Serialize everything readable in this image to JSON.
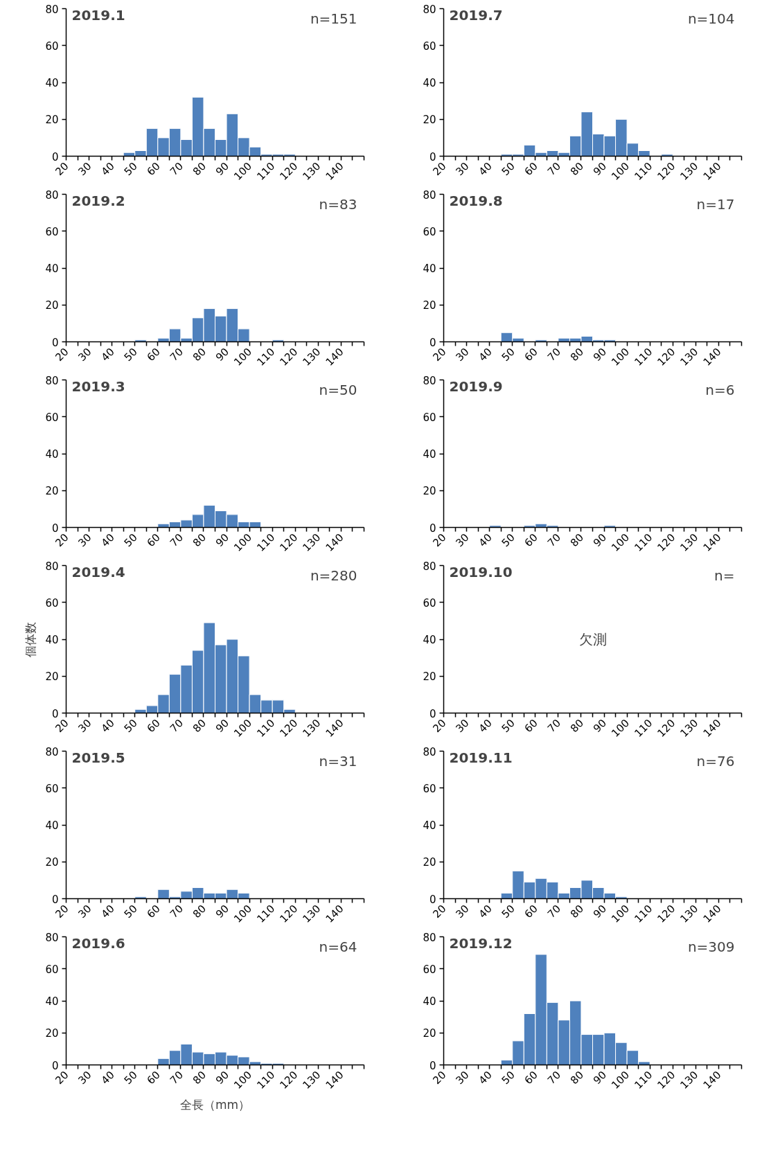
{
  "chart_data": [
    {
      "type": "histogram",
      "title": "2019.1",
      "annotations": [
        "n=151"
      ],
      "color": "#4f81bd",
      "bins": [
        20,
        25,
        30,
        35,
        40,
        45,
        50,
        55,
        60,
        65,
        70,
        75,
        80,
        85,
        90,
        95,
        100,
        105,
        110,
        115,
        120,
        125,
        130,
        135,
        140,
        145,
        150
      ],
      "values": [
        0,
        0,
        0,
        0,
        0,
        2,
        3,
        15,
        10,
        15,
        9,
        32,
        15,
        9,
        23,
        10,
        5,
        1,
        1,
        1,
        0,
        0,
        0,
        0,
        0,
        0
      ],
      "xlim": [
        20,
        150
      ],
      "ylim": [
        0,
        80
      ],
      "yticks": [
        0,
        20,
        40,
        60,
        80
      ],
      "xticks": [
        20,
        {
          "value": 25,
          "label": null
        },
        30,
        {
          "value": 35,
          "label": null
        },
        40,
        {
          "value": 45,
          "label": null
        },
        50,
        {
          "value": 55,
          "label": null
        },
        60,
        {
          "value": 65,
          "label": null
        },
        70,
        {
          "value": 75,
          "label": null
        },
        80,
        {
          "value": 85,
          "label": null
        },
        90,
        {
          "value": 95,
          "label": null
        },
        100,
        {
          "value": 105,
          "label": null
        },
        110,
        {
          "value": 115,
          "label": null
        },
        120,
        {
          "value": 125,
          "label": null
        },
        130,
        {
          "value": 135,
          "label": null
        },
        140,
        {
          "value": 145,
          "label": null
        },
        {
          "value": 150,
          "label": null
        }
      ],
      "grid": false
    },
    {
      "type": "histogram",
      "title": "2019.2",
      "annotations": [
        "n=83"
      ],
      "color": "#4f81bd",
      "bins": [
        20,
        25,
        30,
        35,
        40,
        45,
        50,
        55,
        60,
        65,
        70,
        75,
        80,
        85,
        90,
        95,
        100,
        105,
        110,
        115,
        120,
        125,
        130,
        135,
        140,
        145,
        150
      ],
      "values": [
        0,
        0,
        0,
        0,
        0,
        0,
        1,
        0,
        2,
        7,
        2,
        13,
        18,
        14,
        18,
        7,
        0,
        0,
        1,
        0,
        0,
        0,
        0,
        0,
        0,
        0
      ],
      "xlim": [
        20,
        150
      ],
      "ylim": [
        0,
        80
      ],
      "yticks": [
        0,
        20,
        40,
        60,
        80
      ],
      "xticks": [
        20,
        {
          "value": 25,
          "label": null
        },
        30,
        {
          "value": 35,
          "label": null
        },
        40,
        {
          "value": 45,
          "label": null
        },
        50,
        {
          "value": 55,
          "label": null
        },
        60,
        {
          "value": 65,
          "label": null
        },
        70,
        {
          "value": 75,
          "label": null
        },
        80,
        {
          "value": 85,
          "label": null
        },
        90,
        {
          "value": 95,
          "label": null
        },
        100,
        {
          "value": 105,
          "label": null
        },
        110,
        {
          "value": 115,
          "label": null
        },
        120,
        {
          "value": 125,
          "label": null
        },
        130,
        {
          "value": 135,
          "label": null
        },
        140,
        {
          "value": 145,
          "label": null
        },
        {
          "value": 150,
          "label": null
        }
      ],
      "grid": false
    },
    {
      "type": "histogram",
      "title": "2019.3",
      "annotations": [
        "n=50"
      ],
      "color": "#4f81bd",
      "bins": [
        20,
        25,
        30,
        35,
        40,
        45,
        50,
        55,
        60,
        65,
        70,
        75,
        80,
        85,
        90,
        95,
        100,
        105,
        110,
        115,
        120,
        125,
        130,
        135,
        140,
        145,
        150
      ],
      "values": [
        0,
        0,
        0,
        0,
        0,
        0,
        0,
        0,
        2,
        3,
        4,
        7,
        12,
        9,
        7,
        3,
        3,
        0,
        0,
        0,
        0,
        0,
        0,
        0,
        0,
        0
      ],
      "xlim": [
        20,
        150
      ],
      "ylim": [
        0,
        80
      ],
      "yticks": [
        0,
        20,
        40,
        60,
        80
      ],
      "xticks": [
        20,
        {
          "value": 25,
          "label": null
        },
        30,
        {
          "value": 35,
          "label": null
        },
        40,
        {
          "value": 45,
          "label": null
        },
        50,
        {
          "value": 55,
          "label": null
        },
        60,
        {
          "value": 65,
          "label": null
        },
        70,
        {
          "value": 75,
          "label": null
        },
        80,
        {
          "value": 85,
          "label": null
        },
        90,
        {
          "value": 95,
          "label": null
        },
        100,
        {
          "value": 105,
          "label": null
        },
        110,
        {
          "value": 115,
          "label": null
        },
        120,
        {
          "value": 125,
          "label": null
        },
        130,
        {
          "value": 135,
          "label": null
        },
        140,
        {
          "value": 145,
          "label": null
        },
        {
          "value": 150,
          "label": null
        }
      ],
      "grid": false
    },
    {
      "type": "histogram",
      "title": "2019.4",
      "ylabel": "個体数",
      "annotations": [
        "n=280"
      ],
      "color": "#4f81bd",
      "bins": [
        20,
        25,
        30,
        35,
        40,
        45,
        50,
        55,
        60,
        65,
        70,
        75,
        80,
        85,
        90,
        95,
        100,
        105,
        110,
        115,
        120,
        125,
        130,
        135,
        140,
        145,
        150
      ],
      "values": [
        0,
        0,
        0,
        0,
        0,
        0,
        2,
        4,
        10,
        21,
        26,
        34,
        49,
        37,
        40,
        31,
        10,
        7,
        7,
        2,
        0,
        0,
        0,
        0,
        0,
        0
      ],
      "xlim": [
        20,
        150
      ],
      "ylim": [
        0,
        80
      ],
      "yticks": [
        0,
        20,
        40,
        60,
        80
      ],
      "xticks": [
        20,
        {
          "value": 25,
          "label": null
        },
        30,
        {
          "value": 35,
          "label": null
        },
        40,
        {
          "value": 45,
          "label": null
        },
        50,
        {
          "value": 55,
          "label": null
        },
        60,
        {
          "value": 65,
          "label": null
        },
        70,
        {
          "value": 75,
          "label": null
        },
        80,
        {
          "value": 85,
          "label": null
        },
        90,
        {
          "value": 95,
          "label": null
        },
        100,
        {
          "value": 105,
          "label": null
        },
        110,
        {
          "value": 115,
          "label": null
        },
        120,
        {
          "value": 125,
          "label": null
        },
        130,
        {
          "value": 135,
          "label": null
        },
        140,
        {
          "value": 145,
          "label": null
        },
        {
          "value": 150,
          "label": null
        }
      ],
      "grid": false
    },
    {
      "type": "histogram",
      "title": "2019.5",
      "annotations": [
        "n=31"
      ],
      "color": "#4f81bd",
      "bins": [
        20,
        25,
        30,
        35,
        40,
        45,
        50,
        55,
        60,
        65,
        70,
        75,
        80,
        85,
        90,
        95,
        100,
        105,
        110,
        115,
        120,
        125,
        130,
        135,
        140,
        145,
        150
      ],
      "values": [
        0,
        0,
        0,
        0,
        0,
        0,
        1,
        0,
        5,
        1,
        4,
        6,
        3,
        3,
        5,
        3,
        0,
        0,
        0,
        0,
        0,
        0,
        0,
        0,
        0,
        0
      ],
      "xlim": [
        20,
        150
      ],
      "ylim": [
        0,
        80
      ],
      "yticks": [
        0,
        20,
        40,
        60,
        80
      ],
      "xticks": [
        20,
        {
          "value": 25,
          "label": null
        },
        30,
        {
          "value": 35,
          "label": null
        },
        40,
        {
          "value": 45,
          "label": null
        },
        50,
        {
          "value": 55,
          "label": null
        },
        60,
        {
          "value": 65,
          "label": null
        },
        70,
        {
          "value": 75,
          "label": null
        },
        80,
        {
          "value": 85,
          "label": null
        },
        90,
        {
          "value": 95,
          "label": null
        },
        100,
        {
          "value": 105,
          "label": null
        },
        110,
        {
          "value": 115,
          "label": null
        },
        120,
        {
          "value": 125,
          "label": null
        },
        130,
        {
          "value": 135,
          "label": null
        },
        140,
        {
          "value": 145,
          "label": null
        },
        {
          "value": 150,
          "label": null
        }
      ],
      "grid": false
    },
    {
      "type": "histogram",
      "title": "2019.6",
      "xlabel": "全長（mm）",
      "annotations": [
        "n=64"
      ],
      "color": "#4f81bd",
      "bins": [
        20,
        25,
        30,
        35,
        40,
        45,
        50,
        55,
        60,
        65,
        70,
        75,
        80,
        85,
        90,
        95,
        100,
        105,
        110,
        115,
        120,
        125,
        130,
        135,
        140,
        145,
        150
      ],
      "values": [
        0,
        0,
        0,
        0,
        0,
        0,
        0,
        0,
        4,
        9,
        13,
        8,
        7,
        8,
        6,
        5,
        2,
        1,
        1,
        0,
        0,
        0,
        0,
        0,
        0,
        0
      ],
      "xlim": [
        20,
        150
      ],
      "ylim": [
        0,
        80
      ],
      "yticks": [
        0,
        20,
        40,
        60,
        80
      ],
      "xticks": [
        20,
        {
          "value": 25,
          "label": null
        },
        30,
        {
          "value": 35,
          "label": null
        },
        40,
        {
          "value": 45,
          "label": null
        },
        50,
        {
          "value": 55,
          "label": null
        },
        60,
        {
          "value": 65,
          "label": null
        },
        70,
        {
          "value": 75,
          "label": null
        },
        80,
        {
          "value": 85,
          "label": null
        },
        90,
        {
          "value": 95,
          "label": null
        },
        100,
        {
          "value": 105,
          "label": null
        },
        110,
        {
          "value": 115,
          "label": null
        },
        120,
        {
          "value": 125,
          "label": null
        },
        130,
        {
          "value": 135,
          "label": null
        },
        140,
        {
          "value": 145,
          "label": null
        },
        {
          "value": 150,
          "label": null
        }
      ],
      "grid": false
    },
    {
      "type": "histogram",
      "title": "2019.7",
      "annotations": [
        "n=104"
      ],
      "color": "#4f81bd",
      "bins": [
        20,
        25,
        30,
        35,
        40,
        45,
        50,
        55,
        60,
        65,
        70,
        75,
        80,
        85,
        90,
        95,
        100,
        105,
        110,
        115,
        120,
        125,
        130,
        135,
        140,
        145,
        150
      ],
      "values": [
        0,
        0,
        0,
        0,
        0,
        1,
        1,
        6,
        2,
        3,
        2,
        11,
        24,
        12,
        11,
        20,
        7,
        3,
        0,
        1,
        0,
        0,
        0,
        0,
        0,
        0
      ],
      "xlim": [
        20,
        150
      ],
      "ylim": [
        0,
        80
      ],
      "yticks": [
        0,
        20,
        40,
        60,
        80
      ],
      "xticks": [
        20,
        {
          "value": 25,
          "label": null
        },
        30,
        {
          "value": 35,
          "label": null
        },
        40,
        {
          "value": 45,
          "label": null
        },
        50,
        {
          "value": 55,
          "label": null
        },
        60,
        {
          "value": 65,
          "label": null
        },
        70,
        {
          "value": 75,
          "label": null
        },
        80,
        {
          "value": 85,
          "label": null
        },
        90,
        {
          "value": 95,
          "label": null
        },
        100,
        {
          "value": 105,
          "label": null
        },
        110,
        {
          "value": 115,
          "label": null
        },
        120,
        {
          "value": 125,
          "label": null
        },
        130,
        {
          "value": 135,
          "label": null
        },
        140,
        {
          "value": 145,
          "label": null
        },
        {
          "value": 150,
          "label": null
        }
      ],
      "grid": false
    },
    {
      "type": "histogram",
      "title": "2019.8",
      "annotations": [
        "n=17"
      ],
      "color": "#4f81bd",
      "bins": [
        20,
        25,
        30,
        35,
        40,
        45,
        50,
        55,
        60,
        65,
        70,
        75,
        80,
        85,
        90,
        95,
        100,
        105,
        110,
        115,
        120,
        125,
        130,
        135,
        140,
        145,
        150
      ],
      "values": [
        0,
        0,
        0,
        0,
        0,
        5,
        2,
        0,
        1,
        0,
        2,
        2,
        3,
        1,
        1,
        0,
        0,
        0,
        0,
        0,
        0,
        0,
        0,
        0,
        0,
        0
      ],
      "xlim": [
        20,
        150
      ],
      "ylim": [
        0,
        80
      ],
      "yticks": [
        0,
        20,
        40,
        60,
        80
      ],
      "xticks": [
        20,
        {
          "value": 25,
          "label": null
        },
        30,
        {
          "value": 35,
          "label": null
        },
        40,
        {
          "value": 45,
          "label": null
        },
        50,
        {
          "value": 55,
          "label": null
        },
        60,
        {
          "value": 65,
          "label": null
        },
        70,
        {
          "value": 75,
          "label": null
        },
        80,
        {
          "value": 85,
          "label": null
        },
        90,
        {
          "value": 95,
          "label": null
        },
        100,
        {
          "value": 105,
          "label": null
        },
        110,
        {
          "value": 115,
          "label": null
        },
        120,
        {
          "value": 125,
          "label": null
        },
        130,
        {
          "value": 135,
          "label": null
        },
        140,
        {
          "value": 145,
          "label": null
        },
        {
          "value": 150,
          "label": null
        }
      ],
      "grid": false
    },
    {
      "type": "histogram",
      "title": "2019.9",
      "annotations": [
        "n=6"
      ],
      "color": "#4f81bd",
      "bins": [
        20,
        25,
        30,
        35,
        40,
        45,
        50,
        55,
        60,
        65,
        70,
        75,
        80,
        85,
        90,
        95,
        100,
        105,
        110,
        115,
        120,
        125,
        130,
        135,
        140,
        145,
        150
      ],
      "values": [
        0,
        0,
        0,
        0,
        1,
        0,
        0,
        1,
        2,
        1,
        0,
        0,
        0,
        0,
        1,
        0,
        0,
        0,
        0,
        0,
        0,
        0,
        0,
        0,
        0,
        0
      ],
      "xlim": [
        20,
        150
      ],
      "ylim": [
        0,
        80
      ],
      "yticks": [
        0,
        20,
        40,
        60,
        80
      ],
      "xticks": [
        20,
        {
          "value": 25,
          "label": null
        },
        30,
        {
          "value": 35,
          "label": null
        },
        40,
        {
          "value": 45,
          "label": null
        },
        50,
        {
          "value": 55,
          "label": null
        },
        60,
        {
          "value": 65,
          "label": null
        },
        70,
        {
          "value": 75,
          "label": null
        },
        80,
        {
          "value": 85,
          "label": null
        },
        90,
        {
          "value": 95,
          "label": null
        },
        100,
        {
          "value": 105,
          "label": null
        },
        110,
        {
          "value": 115,
          "label": null
        },
        120,
        {
          "value": 125,
          "label": null
        },
        130,
        {
          "value": 135,
          "label": null
        },
        140,
        {
          "value": 145,
          "label": null
        },
        {
          "value": 150,
          "label": null
        }
      ],
      "grid": false
    },
    {
      "type": "histogram",
      "title": "2019.10",
      "annotations": [
        "n=",
        "欠測"
      ],
      "color": "#4f81bd",
      "bins": [
        20,
        25,
        30,
        35,
        40,
        45,
        50,
        55,
        60,
        65,
        70,
        75,
        80,
        85,
        90,
        95,
        100,
        105,
        110,
        115,
        120,
        125,
        130,
        135,
        140,
        145,
        150
      ],
      "values": [
        0,
        0,
        0,
        0,
        0,
        0,
        0,
        0,
        0,
        0,
        0,
        0,
        0,
        0,
        0,
        0,
        0,
        0,
        0,
        0,
        0,
        0,
        0,
        0,
        0,
        0
      ],
      "xlim": [
        20,
        150
      ],
      "ylim": [
        0,
        80
      ],
      "yticks": [
        0,
        20,
        40,
        60,
        80
      ],
      "xticks": [
        20,
        {
          "value": 25,
          "label": null
        },
        30,
        {
          "value": 35,
          "label": null
        },
        40,
        {
          "value": 45,
          "label": null
        },
        50,
        {
          "value": 55,
          "label": null
        },
        60,
        {
          "value": 65,
          "label": null
        },
        70,
        {
          "value": 75,
          "label": null
        },
        80,
        {
          "value": 85,
          "label": null
        },
        90,
        {
          "value": 95,
          "label": null
        },
        100,
        {
          "value": 105,
          "label": null
        },
        110,
        {
          "value": 115,
          "label": null
        },
        120,
        {
          "value": 125,
          "label": null
        },
        130,
        {
          "value": 135,
          "label": null
        },
        140,
        {
          "value": 145,
          "label": null
        },
        {
          "value": 150,
          "label": null
        }
      ],
      "grid": false
    },
    {
      "type": "histogram",
      "title": "2019.11",
      "annotations": [
        "n=76"
      ],
      "color": "#4f81bd",
      "bins": [
        20,
        25,
        30,
        35,
        40,
        45,
        50,
        55,
        60,
        65,
        70,
        75,
        80,
        85,
        90,
        95,
        100,
        105,
        110,
        115,
        120,
        125,
        130,
        135,
        140,
        145,
        150
      ],
      "values": [
        0,
        0,
        0,
        0,
        0,
        3,
        15,
        9,
        11,
        9,
        3,
        6,
        10,
        6,
        3,
        1,
        0,
        0,
        0,
        0,
        0,
        0,
        0,
        0,
        0,
        0
      ],
      "xlim": [
        20,
        150
      ],
      "ylim": [
        0,
        80
      ],
      "yticks": [
        0,
        20,
        40,
        60,
        80
      ],
      "xticks": [
        20,
        {
          "value": 25,
          "label": null
        },
        30,
        {
          "value": 35,
          "label": null
        },
        40,
        {
          "value": 45,
          "label": null
        },
        50,
        {
          "value": 55,
          "label": null
        },
        60,
        {
          "value": 65,
          "label": null
        },
        70,
        {
          "value": 75,
          "label": null
        },
        80,
        {
          "value": 85,
          "label": null
        },
        90,
        {
          "value": 95,
          "label": null
        },
        100,
        {
          "value": 105,
          "label": null
        },
        110,
        {
          "value": 115,
          "label": null
        },
        120,
        {
          "value": 125,
          "label": null
        },
        130,
        {
          "value": 135,
          "label": null
        },
        140,
        {
          "value": 145,
          "label": null
        },
        {
          "value": 150,
          "label": null
        }
      ],
      "grid": false
    },
    {
      "type": "histogram",
      "title": "2019.12",
      "annotations": [
        "n=309"
      ],
      "color": "#4f81bd",
      "bins": [
        20,
        25,
        30,
        35,
        40,
        45,
        50,
        55,
        60,
        65,
        70,
        75,
        80,
        85,
        90,
        95,
        100,
        105,
        110,
        115,
        120,
        125,
        130,
        135,
        140,
        145,
        150
      ],
      "values": [
        0,
        0,
        0,
        0,
        0,
        3,
        15,
        32,
        69,
        39,
        28,
        40,
        19,
        19,
        20,
        14,
        9,
        2,
        0,
        0,
        0,
        0,
        0,
        0,
        0,
        0
      ],
      "xlim": [
        20,
        150
      ],
      "ylim": [
        0,
        80
      ],
      "yticks": [
        0,
        20,
        40,
        60,
        80
      ],
      "xticks": [
        20,
        {
          "value": 25,
          "label": null
        },
        30,
        {
          "value": 35,
          "label": null
        },
        40,
        {
          "value": 45,
          "label": null
        },
        50,
        {
          "value": 55,
          "label": null
        },
        60,
        {
          "value": 65,
          "label": null
        },
        70,
        {
          "value": 75,
          "label": null
        },
        80,
        {
          "value": 85,
          "label": null
        },
        90,
        {
          "value": 95,
          "label": null
        },
        100,
        {
          "value": 105,
          "label": null
        },
        110,
        {
          "value": 115,
          "label": null
        },
        120,
        {
          "value": 125,
          "label": null
        },
        130,
        {
          "value": 135,
          "label": null
        },
        140,
        {
          "value": 145,
          "label": null
        },
        {
          "value": 150,
          "label": null
        }
      ],
      "grid": false
    }
  ]
}
